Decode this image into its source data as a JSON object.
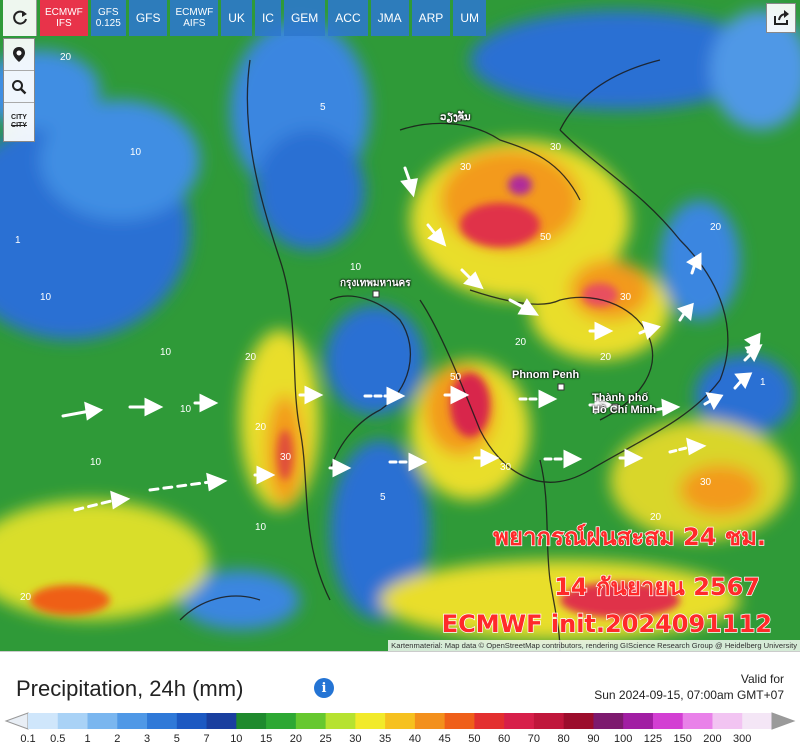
{
  "toolbar": {
    "refresh_icon": "refresh-icon",
    "models": [
      {
        "line1": "ECMWF",
        "line2": "IFS",
        "active": true
      },
      {
        "line1": "GFS",
        "line2": "0.125",
        "active": false
      },
      {
        "line1": "GFS",
        "line2": "",
        "active": false
      },
      {
        "line1": "ECMWF",
        "line2": "AIFS",
        "active": false
      },
      {
        "line1": "UK",
        "line2": "",
        "active": false
      },
      {
        "line1": "IC",
        "line2": "",
        "active": false
      },
      {
        "line1": "GEM",
        "line2": "",
        "active": false
      },
      {
        "line1": "ACC",
        "line2": "",
        "active": false
      },
      {
        "line1": "JMA",
        "line2": "",
        "active": false
      },
      {
        "line1": "ARP",
        "line2": "",
        "active": false
      },
      {
        "line1": "UM",
        "line2": "",
        "active": false
      }
    ],
    "active_color": "#e8334a",
    "model_color": "#2d78cd"
  },
  "side_tools": {
    "location_icon": "location-pin-icon",
    "zoom_icon": "zoom-icon",
    "city_line1": "CITY",
    "city_line2": "CITY"
  },
  "share_icon": "share-icon",
  "map": {
    "places": {
      "phnom_penh": "Phnom Penh",
      "hcmc_1": "Thành phố",
      "hcmc_2": "Hồ Chí Minh",
      "bangkok": "กรุงเทพมหานคร",
      "vientiane": "ວຽງຈັນ"
    },
    "overlay": {
      "line1": "พยากรณ์ฝนสะสม 24 ชม.",
      "line2": "14 กันยายน 2567",
      "line3": "ECMWF init.2024091112"
    },
    "attribution": "Kartenmaterial: Map data © OpenStreetMap contributors, rendering GIScience Research Group @ Heidelberg University"
  },
  "legend": {
    "title": "Precipitation, 24h (mm)",
    "info_icon": "info-icon",
    "valid_line1": "Valid for",
    "valid_line2": "Sun 2024-09-15, 07:00am GMT+07",
    "scale": [
      {
        "label": "0.1",
        "color": "#cfe6fb"
      },
      {
        "label": "0.5",
        "color": "#a9d2f6"
      },
      {
        "label": "1",
        "color": "#7ab6ef"
      },
      {
        "label": "2",
        "color": "#4f98e6"
      },
      {
        "label": "3",
        "color": "#2f79d8"
      },
      {
        "label": "5",
        "color": "#1c59c2"
      },
      {
        "label": "7",
        "color": "#1a3f9f"
      },
      {
        "label": "10",
        "color": "#1f8a2e"
      },
      {
        "label": "15",
        "color": "#2ea834"
      },
      {
        "label": "20",
        "color": "#66c82f"
      },
      {
        "label": "25",
        "color": "#b6e230"
      },
      {
        "label": "30",
        "color": "#f2ea2a"
      },
      {
        "label": "35",
        "color": "#f6c11f"
      },
      {
        "label": "40",
        "color": "#f3901c"
      },
      {
        "label": "45",
        "color": "#ef5f19"
      },
      {
        "label": "50",
        "color": "#e32f2f"
      },
      {
        "label": "60",
        "color": "#d71f4a"
      },
      {
        "label": "70",
        "color": "#c0163b"
      },
      {
        "label": "80",
        "color": "#9c0d2c"
      },
      {
        "label": "90",
        "color": "#7d1a6e"
      },
      {
        "label": "100",
        "color": "#a11ea3"
      },
      {
        "label": "125",
        "color": "#d33fd3"
      },
      {
        "label": "150",
        "color": "#e981e9"
      },
      {
        "label": "200",
        "color": "#f2c4f2"
      },
      {
        "label": "300",
        "color": "#f4e6f6"
      }
    ],
    "end_left_color": "#e8eef5",
    "end_right_color": "#9a9a9a"
  }
}
